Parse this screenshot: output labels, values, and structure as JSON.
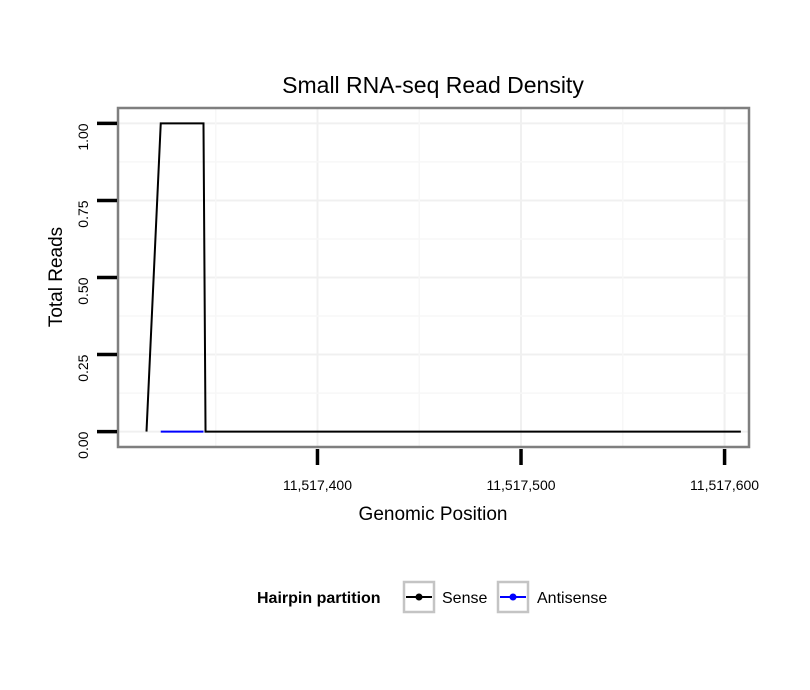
{
  "chart_data": {
    "type": "line",
    "title": "Small RNA-seq Read Density",
    "xlabel": "Genomic Position",
    "ylabel": "Total Reads",
    "xlim": [
      11517302,
      11517612
    ],
    "ylim": [
      -0.05,
      1.05
    ],
    "x_ticks": [
      11517400,
      11517500,
      11517600
    ],
    "x_tick_labels": [
      "11,517,400",
      "11,517,500",
      "11,517,600"
    ],
    "y_ticks": [
      0,
      0.25,
      0.5,
      0.75,
      1.0
    ],
    "y_tick_labels": [
      "0.00",
      "0.25",
      "0.50",
      "0.75",
      "1.00"
    ],
    "grid": true,
    "legend": {
      "title": "Hairpin partition",
      "position": "bottom"
    },
    "series": [
      {
        "name": "Sense",
        "color": "#000000",
        "x": [
          11517316,
          11517323,
          11517344,
          11517345,
          11517608
        ],
        "y": [
          0,
          1,
          1,
          0,
          0
        ]
      },
      {
        "name": "Antisense",
        "color": "#0000ff",
        "x": [
          11517323,
          11517344
        ],
        "y": [
          0,
          0
        ]
      }
    ]
  }
}
